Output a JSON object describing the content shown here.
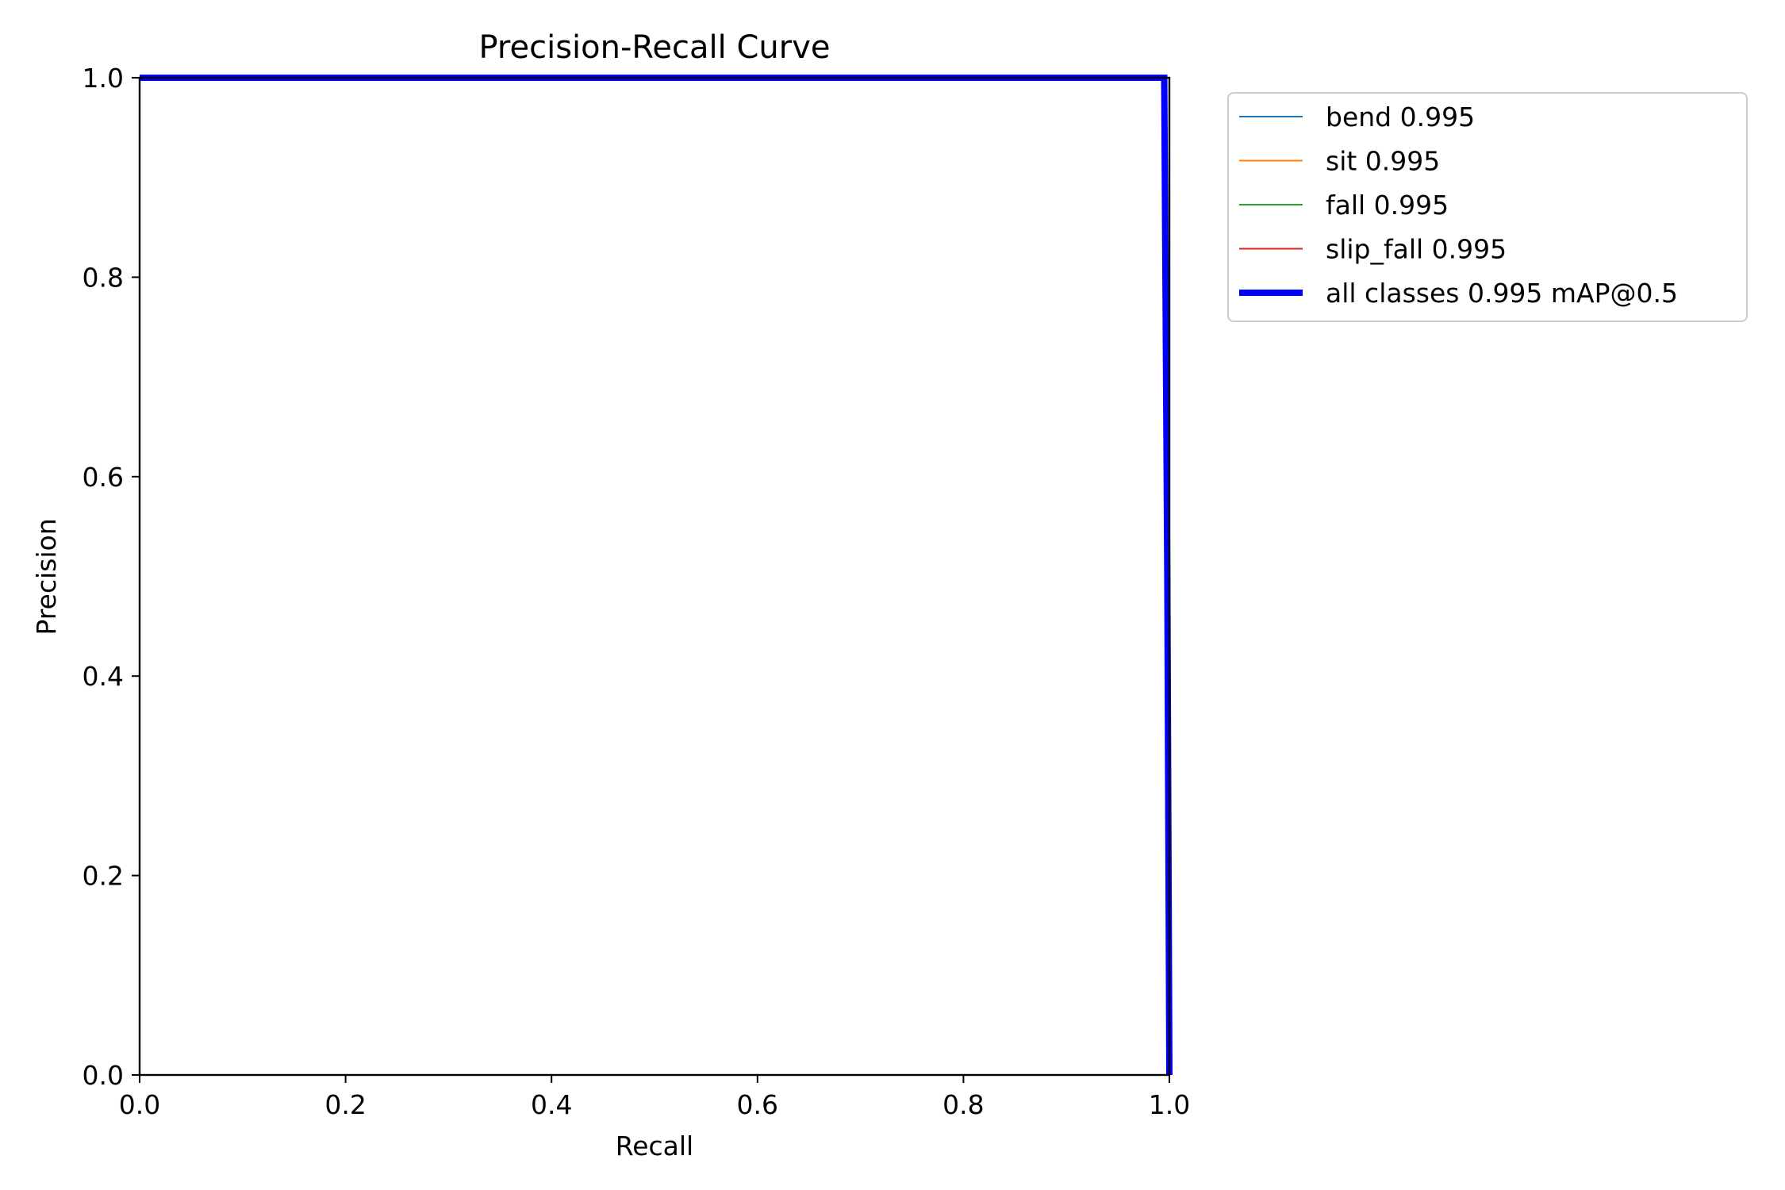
{
  "chart_data": {
    "type": "line",
    "title": "Precision-Recall Curve",
    "xlabel": "Recall",
    "ylabel": "Precision",
    "xlim": [
      0.0,
      1.0
    ],
    "ylim": [
      0.0,
      1.0
    ],
    "xticks": [
      "0.0",
      "0.2",
      "0.4",
      "0.6",
      "0.8",
      "1.0"
    ],
    "yticks": [
      "0.0",
      "0.2",
      "0.4",
      "0.6",
      "0.8",
      "1.0"
    ],
    "grid": false,
    "legend_position": "outside-right-top",
    "series": [
      {
        "name": "bend 0.995",
        "color": "#1f77b4",
        "x": [
          0.0,
          0.995,
          1.0,
          1.0
        ],
        "y": [
          1.0,
          1.0,
          0.5,
          0.0
        ]
      },
      {
        "name": "sit 0.995",
        "color": "#ff7f0e",
        "x": [
          0.0,
          0.995,
          1.0,
          1.0
        ],
        "y": [
          1.0,
          1.0,
          0.5,
          0.0
        ]
      },
      {
        "name": "fall 0.995",
        "color": "#2ca02c",
        "x": [
          0.0,
          0.995,
          1.0,
          1.0
        ],
        "y": [
          1.0,
          1.0,
          0.5,
          0.0
        ]
      },
      {
        "name": "slip_fall 0.995",
        "color": "#d62728",
        "x": [
          0.0,
          0.995,
          1.0,
          1.0
        ],
        "y": [
          1.0,
          1.0,
          0.5,
          0.0
        ]
      },
      {
        "name": "all classes 0.995 mAP@0.5",
        "color": "#0000ff",
        "thick": true,
        "x": [
          0.0,
          0.995,
          0.998,
          1.0
        ],
        "y": [
          1.0,
          1.0,
          0.5,
          0.0
        ]
      }
    ]
  }
}
